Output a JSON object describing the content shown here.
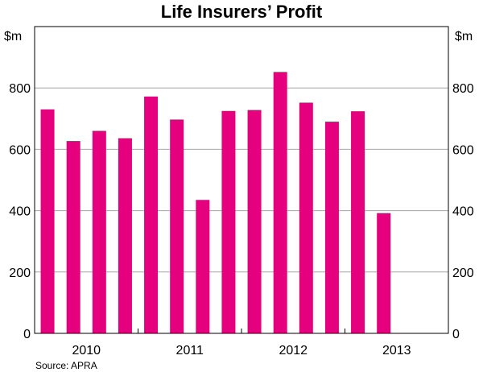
{
  "chart_data": {
    "type": "bar",
    "title": "Life Insurers’ Profit",
    "source": "Source: APRA",
    "unit_left": "$m",
    "unit_right": "$m",
    "ylim": [
      0,
      1000
    ],
    "yticks": [
      0,
      200,
      400,
      600,
      800
    ],
    "bar_color": "#e5007e",
    "grid": true,
    "year_labels": [
      "2010",
      "2011",
      "2012",
      "2013"
    ],
    "values": [
      730,
      627,
      660,
      636,
      772,
      697,
      435,
      725,
      728,
      852,
      752,
      690,
      724,
      392
    ]
  }
}
